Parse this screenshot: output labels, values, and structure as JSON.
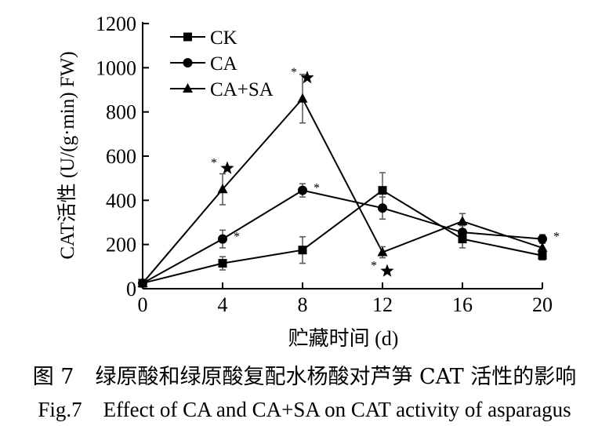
{
  "chart_data": {
    "type": "line",
    "xlabel": "贮藏时间 (d)",
    "ylabel": "CAT活性 (U/(g·min) FW)",
    "x": [
      0,
      4,
      8,
      12,
      16,
      20
    ],
    "xticks": [
      "0",
      "4",
      "8",
      "12",
      "16",
      "20"
    ],
    "yticks": [
      "0",
      "200",
      "400",
      "600",
      "800",
      "1000",
      "1200"
    ],
    "xlim": [
      0,
      20
    ],
    "ylim": [
      0,
      1200
    ],
    "grid": false,
    "legend_position": "top-left",
    "series": [
      {
        "name": "CK",
        "marker": "square",
        "values": [
          25,
          115,
          175,
          445,
          225,
          150
        ],
        "errors": [
          0,
          30,
          60,
          80,
          40,
          20
        ]
      },
      {
        "name": "CA",
        "marker": "circle",
        "values": [
          25,
          225,
          445,
          365,
          255,
          225
        ],
        "errors": [
          0,
          40,
          30,
          50,
          30,
          20
        ]
      },
      {
        "name": "CA+SA",
        "marker": "triangle",
        "values": [
          25,
          450,
          860,
          165,
          305,
          185
        ],
        "errors": [
          0,
          70,
          110,
          25,
          35,
          20
        ]
      }
    ],
    "annotations": [
      {
        "x": 4,
        "y": 545,
        "text": "*",
        "star": true
      },
      {
        "x": 4,
        "y": 225,
        "text": "*",
        "star": false
      },
      {
        "x": 8,
        "y": 955,
        "text": "*",
        "star": true
      },
      {
        "x": 8,
        "y": 445,
        "text": "*",
        "star": false
      },
      {
        "x": 12,
        "y": 80,
        "text": "*",
        "star": true
      },
      {
        "x": 20,
        "y": 225,
        "text": "*",
        "star": false
      }
    ]
  },
  "caption": {
    "cn": "图 7　绿原酸和绿原酸复配水杨酸对芦笋 CAT 活性的影响",
    "en": "Fig.7　Effect of CA and CA+SA on CAT activity of asparagus"
  }
}
